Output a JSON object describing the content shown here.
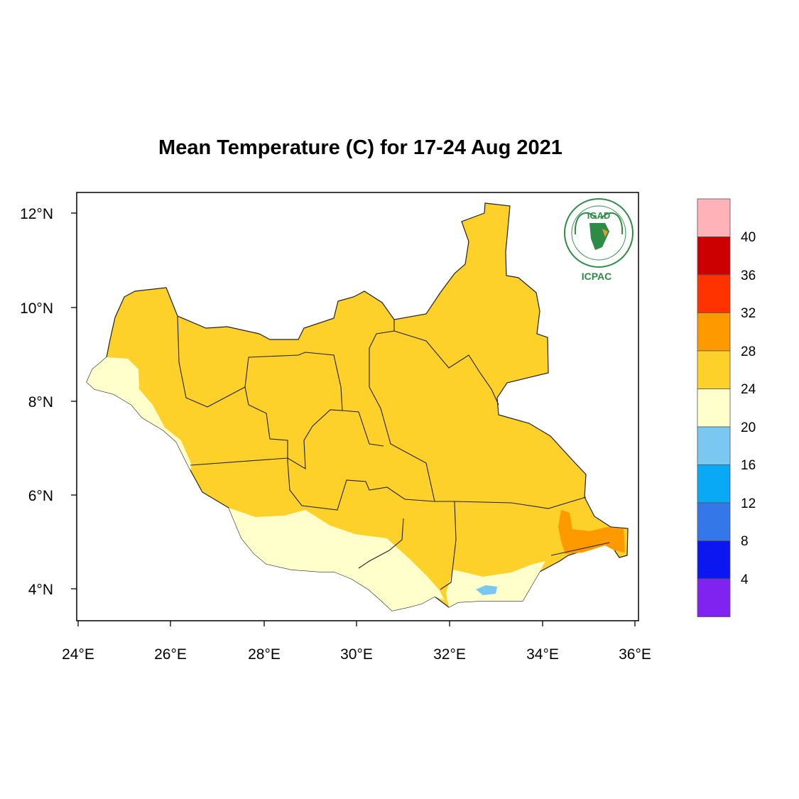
{
  "title": "Mean Temperature (C) for 17-24 Aug 2021",
  "map": {
    "lon_range": [
      24,
      36
    ],
    "lat_range": [
      3.4,
      12.4
    ],
    "x_ticks": [
      "24°E",
      "26°E",
      "28°E",
      "30°E",
      "32°E",
      "34°E",
      "36°E"
    ],
    "y_ticks": [
      "12°N",
      "10°N",
      "8°N",
      "6°N",
      "4°N"
    ]
  },
  "colorbar": {
    "levels": [
      "40",
      "36",
      "32",
      "28",
      "24",
      "20",
      "16",
      "12",
      "8",
      "4"
    ],
    "colors": [
      "#ffb3b8",
      "#cc0000",
      "#ff3300",
      "#ff9900",
      "#fdd12a",
      "#ffffcc",
      "#7ac8f2",
      "#0aa9f5",
      "#3477e8",
      "#0b16f0",
      "#8123f0"
    ]
  },
  "logo": {
    "name": "IGAD",
    "label": "ICPAC"
  }
}
